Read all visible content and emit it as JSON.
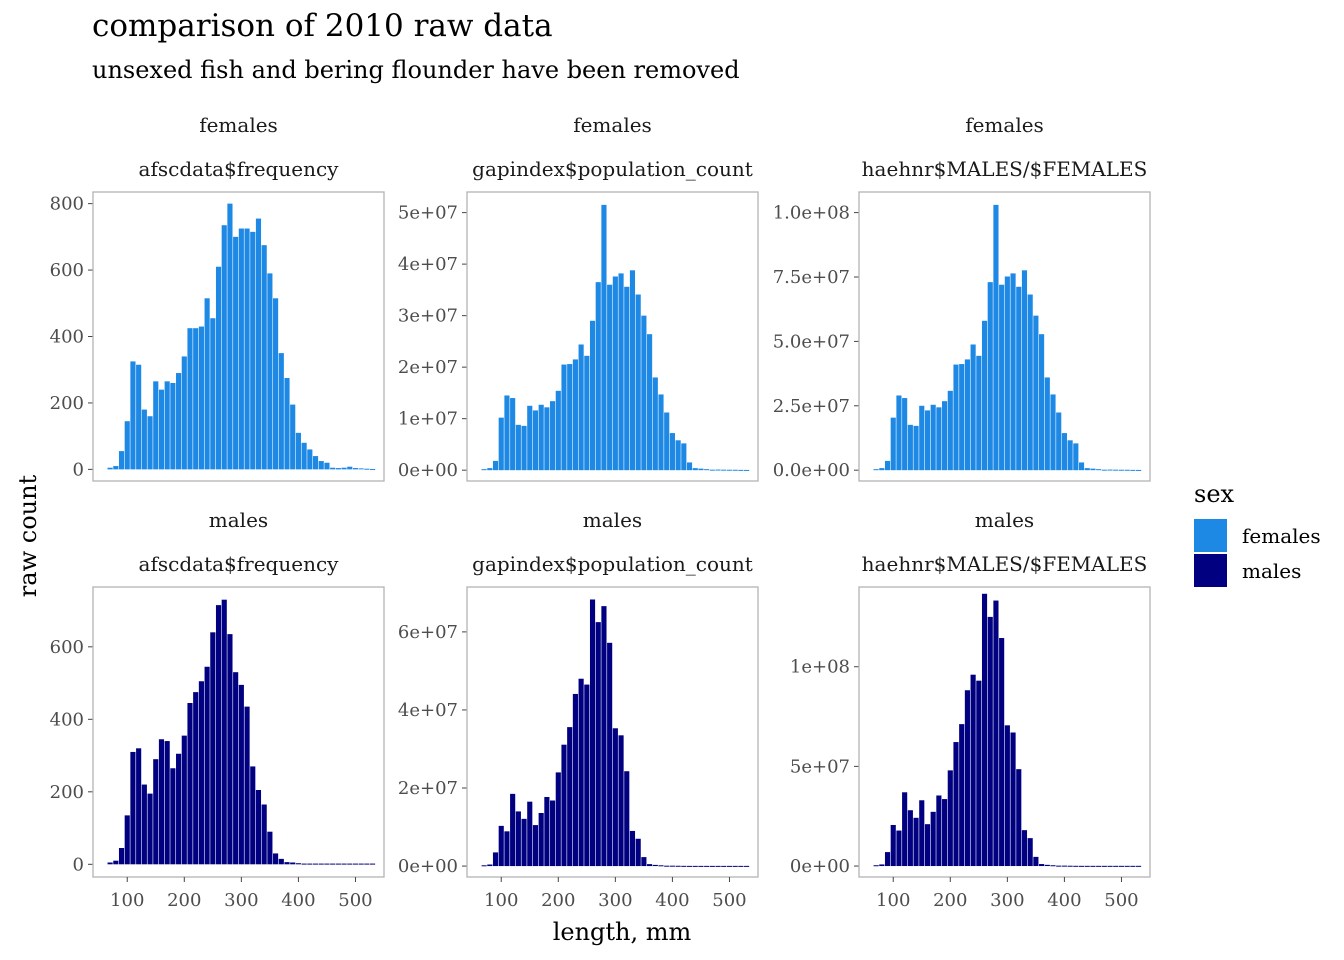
{
  "title": "comparison of 2010 raw data",
  "subtitle": "unsexed fish and bering flounder have been removed",
  "xlabel": "length, mm",
  "ylabel": "raw count",
  "legend": {
    "title": "sex",
    "items": [
      {
        "label": "females",
        "color": "#1e88e5"
      },
      {
        "label": "males",
        "color": "#000080"
      }
    ]
  },
  "chart_data": [
    {
      "type": "bar",
      "sex": "females",
      "source": "afscdata$frequency",
      "xlim": [
        40,
        550
      ],
      "ylim": [
        -35,
        835
      ],
      "yticks": [
        0,
        200,
        400,
        600,
        800
      ],
      "ytick_labels": [
        "0",
        "200",
        "400",
        "600",
        "800"
      ],
      "x": [
        70,
        80,
        90,
        100,
        110,
        120,
        130,
        140,
        150,
        160,
        170,
        180,
        190,
        200,
        210,
        220,
        230,
        240,
        250,
        260,
        270,
        280,
        290,
        300,
        310,
        320,
        330,
        340,
        350,
        360,
        370,
        380,
        390,
        400,
        410,
        420,
        430,
        440,
        450,
        460,
        470,
        480,
        490,
        500,
        510,
        520,
        530
      ],
      "values": [
        5,
        10,
        55,
        145,
        325,
        315,
        180,
        160,
        265,
        240,
        265,
        260,
        290,
        340,
        425,
        425,
        430,
        515,
        455,
        610,
        735,
        800,
        700,
        725,
        725,
        715,
        755,
        675,
        590,
        515,
        350,
        275,
        195,
        110,
        80,
        60,
        40,
        25,
        20,
        5,
        4,
        5,
        8,
        4,
        3,
        2,
        1
      ]
    },
    {
      "type": "bar",
      "sex": "females",
      "source": "gapindex$population_count",
      "xlim": [
        40,
        550
      ],
      "ylim": [
        -2100000,
        54000000
      ],
      "yticks": [
        0,
        10000000,
        20000000,
        30000000,
        40000000,
        50000000
      ],
      "ytick_labels": [
        "0e+00",
        "1e+07",
        "2e+07",
        "3e+07",
        "4e+07",
        "5e+07"
      ],
      "x": [
        70,
        80,
        90,
        100,
        110,
        120,
        130,
        140,
        150,
        160,
        170,
        180,
        190,
        200,
        210,
        220,
        230,
        240,
        250,
        260,
        270,
        280,
        290,
        300,
        310,
        320,
        330,
        340,
        350,
        360,
        370,
        380,
        390,
        400,
        410,
        420,
        430,
        440,
        450,
        460,
        470,
        480,
        490,
        500,
        510,
        520,
        530
      ],
      "values": [
        200000,
        400000,
        1800000,
        10200000,
        14500000,
        14000000,
        8800000,
        8600000,
        12500000,
        11600000,
        12700000,
        12200000,
        13400000,
        15400000,
        20500000,
        20600000,
        21500000,
        24400000,
        22200000,
        29000000,
        36500000,
        51500000,
        36000000,
        37600000,
        38200000,
        35600000,
        38800000,
        34100000,
        30000000,
        26400000,
        18000000,
        14700000,
        11200000,
        7200000,
        5800000,
        5200000,
        1500000,
        400000,
        300000,
        200000,
        100000,
        120000,
        100000,
        90000,
        80000,
        60000,
        50000
      ]
    },
    {
      "type": "bar",
      "sex": "females",
      "source": "haehnr$MALES/$FEMALES",
      "xlim": [
        40,
        550
      ],
      "ylim": [
        -4200000,
        108000000
      ],
      "yticks": [
        0,
        25000000,
        50000000,
        75000000,
        100000000
      ],
      "ytick_labels": [
        "0.0e+00",
        "2.5e+07",
        "5.0e+07",
        "7.5e+07",
        "1.0e+08"
      ],
      "x": [
        70,
        80,
        90,
        100,
        110,
        120,
        130,
        140,
        150,
        160,
        170,
        180,
        190,
        200,
        210,
        220,
        230,
        240,
        250,
        260,
        270,
        280,
        290,
        300,
        310,
        320,
        330,
        340,
        350,
        360,
        370,
        380,
        390,
        400,
        410,
        420,
        430,
        440,
        450,
        460,
        470,
        480,
        490,
        500,
        510,
        520,
        530
      ],
      "values": [
        400000,
        800000,
        3600000,
        20400000,
        29000000,
        28000000,
        17600000,
        17200000,
        25000000,
        23200000,
        25400000,
        24400000,
        26800000,
        30800000,
        41000000,
        41200000,
        43000000,
        48800000,
        44400000,
        58000000,
        73000000,
        103000000,
        72000000,
        75200000,
        76400000,
        71200000,
        77600000,
        68200000,
        60000000,
        52800000,
        36000000,
        29400000,
        22400000,
        14400000,
        11600000,
        10400000,
        3000000,
        800000,
        600000,
        400000,
        200000,
        240000,
        200000,
        180000,
        160000,
        120000,
        100000
      ]
    },
    {
      "type": "bar",
      "sex": "males",
      "source": "afscdata$frequency",
      "xlim": [
        40,
        550
      ],
      "ylim": [
        -35,
        765
      ],
      "yticks": [
        0,
        200,
        400,
        600
      ],
      "ytick_labels": [
        "0",
        "200",
        "400",
        "600"
      ],
      "x": [
        70,
        80,
        90,
        100,
        110,
        120,
        130,
        140,
        150,
        160,
        170,
        180,
        190,
        200,
        210,
        220,
        230,
        240,
        250,
        260,
        270,
        280,
        290,
        300,
        310,
        320,
        330,
        340,
        350,
        360,
        370,
        380,
        390,
        400,
        410,
        420,
        430,
        440,
        450,
        460,
        470,
        480,
        490,
        500,
        510,
        520,
        530
      ],
      "values": [
        5,
        10,
        45,
        135,
        310,
        320,
        220,
        195,
        290,
        345,
        340,
        265,
        305,
        355,
        445,
        475,
        505,
        545,
        640,
        715,
        730,
        635,
        530,
        495,
        435,
        270,
        205,
        165,
        90,
        30,
        15,
        6,
        5,
        3,
        2,
        2,
        2,
        2,
        2,
        2,
        2,
        2,
        2,
        2,
        2,
        2,
        2
      ]
    },
    {
      "type": "bar",
      "sex": "males",
      "source": "gapindex$population_count",
      "xlim": [
        40,
        550
      ],
      "ylim": [
        -2800000,
        71500000
      ],
      "yticks": [
        0,
        20000000,
        40000000,
        60000000
      ],
      "ytick_labels": [
        "0e+00",
        "2e+07",
        "4e+07",
        "6e+07"
      ],
      "x": [
        70,
        80,
        90,
        100,
        110,
        120,
        130,
        140,
        150,
        160,
        170,
        180,
        190,
        200,
        210,
        220,
        230,
        240,
        250,
        260,
        270,
        280,
        290,
        300,
        310,
        320,
        330,
        340,
        350,
        360,
        370,
        380,
        390,
        400,
        410,
        420,
        430,
        440,
        450,
        460,
        470,
        480,
        490,
        500,
        510,
        520,
        530
      ],
      "values": [
        200000,
        400000,
        3500000,
        10300000,
        8900000,
        18500000,
        14000000,
        12100000,
        16500000,
        10500000,
        13600000,
        17700000,
        16800000,
        24000000,
        31100000,
        35600000,
        44100000,
        48000000,
        46500000,
        68300000,
        62500000,
        66600000,
        57200000,
        35300000,
        33500000,
        24300000,
        9000000,
        7000000,
        2300000,
        500000,
        300000,
        200000,
        100000,
        100000,
        80000,
        60000,
        50000,
        50000,
        50000,
        50000,
        50000,
        50000,
        50000,
        50000,
        50000,
        50000,
        50000
      ]
    },
    {
      "type": "bar",
      "sex": "males",
      "source": "haehnr$MALES/$FEMALES",
      "xlim": [
        40,
        550
      ],
      "ylim": [
        -5500000,
        140000000
      ],
      "yticks": [
        0,
        50000000,
        100000000
      ],
      "ytick_labels": [
        "0e+00",
        "5e+07",
        "1e+08"
      ],
      "x": [
        70,
        80,
        90,
        100,
        110,
        120,
        130,
        140,
        150,
        160,
        170,
        180,
        190,
        200,
        210,
        220,
        230,
        240,
        250,
        260,
        270,
        280,
        290,
        300,
        310,
        320,
        330,
        340,
        350,
        360,
        370,
        380,
        390,
        400,
        410,
        420,
        430,
        440,
        450,
        460,
        470,
        480,
        490,
        500,
        510,
        520,
        530
      ],
      "values": [
        400000,
        800000,
        7000000,
        20600000,
        17800000,
        37000000,
        28000000,
        24200000,
        33000000,
        21000000,
        27200000,
        35400000,
        33600000,
        48000000,
        62200000,
        71200000,
        88200000,
        96000000,
        93000000,
        136600000,
        125000000,
        133200000,
        114400000,
        70600000,
        67000000,
        48600000,
        18000000,
        14000000,
        4600000,
        1000000,
        600000,
        400000,
        200000,
        200000,
        160000,
        120000,
        100000,
        100000,
        100000,
        100000,
        100000,
        100000,
        100000,
        100000,
        100000,
        100000,
        100000
      ]
    }
  ],
  "facets": [
    {
      "strip_top": "females",
      "strip_bottom": "afscdata$frequency"
    },
    {
      "strip_top": "females",
      "strip_bottom": "gapindex$population_count"
    },
    {
      "strip_top": "females",
      "strip_bottom": "haehnr$MALES/$FEMALES"
    },
    {
      "strip_top": "males",
      "strip_bottom": "afscdata$frequency"
    },
    {
      "strip_top": "males",
      "strip_bottom": "gapindex$population_count"
    },
    {
      "strip_top": "males",
      "strip_bottom": "haehnr$MALES/$FEMALES"
    }
  ],
  "xticks": [
    100,
    200,
    300,
    400,
    500
  ],
  "xtick_labels": [
    "100",
    "200",
    "300",
    "400",
    "500"
  ]
}
